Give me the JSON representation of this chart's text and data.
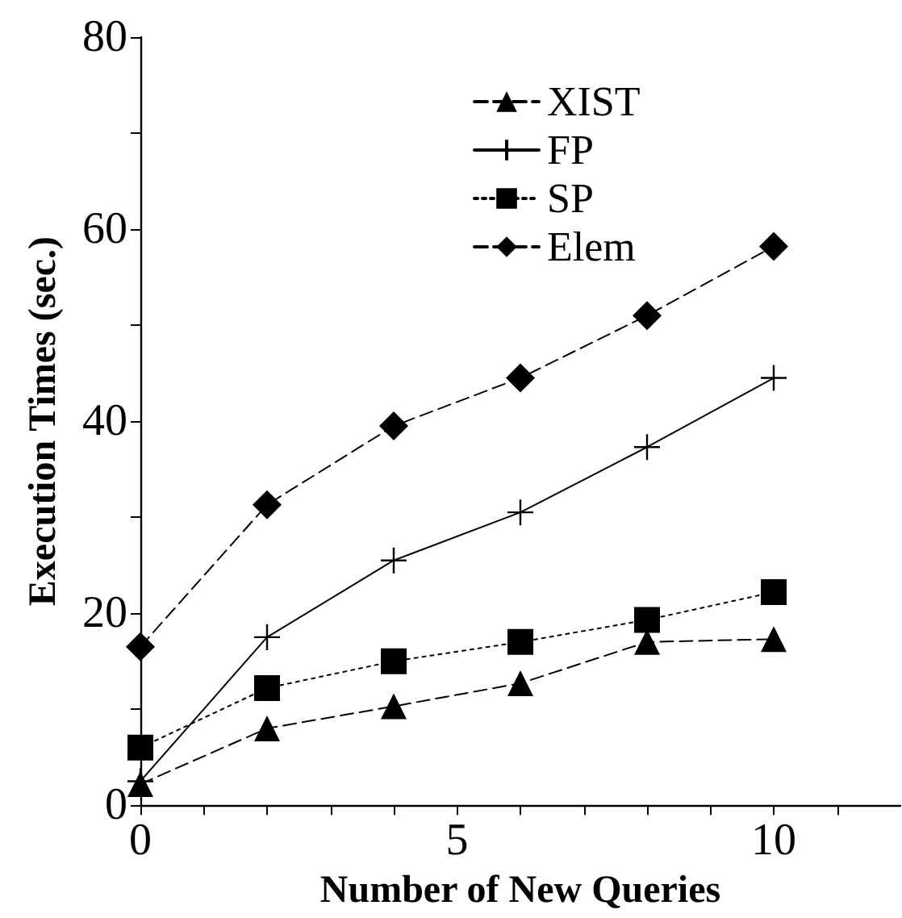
{
  "chart_data": {
    "type": "line",
    "xlabel": "Number of New Queries",
    "ylabel": "Execution Times (sec.)",
    "x": [
      0,
      2,
      4,
      6,
      8,
      10
    ],
    "series": [
      {
        "name": "XIST",
        "color": "#000000",
        "marker": "triangle",
        "line_style": "dashed",
        "values": [
          2.2,
          8,
          10.3,
          12.7,
          17,
          17.3
        ]
      },
      {
        "name": "FP",
        "color": "#000000",
        "marker": "cross",
        "line_style": "solid",
        "values": [
          2.5,
          17.5,
          25.5,
          30.5,
          37.3,
          44.5
        ]
      },
      {
        "name": "SP",
        "color": "#000000",
        "marker": "square",
        "line_style": "dotted",
        "values": [
          6,
          12.2,
          15,
          17,
          19.3,
          22.2
        ]
      },
      {
        "name": "Elem",
        "color": "#000000",
        "marker": "diamond",
        "line_style": "dashed",
        "values": [
          16.5,
          31.3,
          39.5,
          44.5,
          51,
          58.2
        ]
      }
    ],
    "xlim": [
      0,
      12
    ],
    "xticks": [
      0,
      {
        "value": 1,
        "label": null
      },
      {
        "value": 2,
        "label": null
      },
      {
        "value": 3,
        "label": null
      },
      {
        "value": 4,
        "label": null
      },
      5,
      {
        "value": 6,
        "label": null
      },
      {
        "value": 7,
        "label": null
      },
      {
        "value": 8,
        "label": null
      },
      {
        "value": 9,
        "label": null
      },
      10,
      {
        "value": 11,
        "label": null
      }
    ],
    "ylim": [
      0,
      80
    ],
    "yticks": [
      0,
      {
        "value": 10,
        "label": null
      },
      20,
      {
        "value": 30,
        "label": null
      },
      40,
      {
        "value": 50,
        "label": null
      },
      60,
      {
        "value": 70,
        "label": null
      },
      80
    ],
    "grid": false,
    "legend": "top right"
  }
}
